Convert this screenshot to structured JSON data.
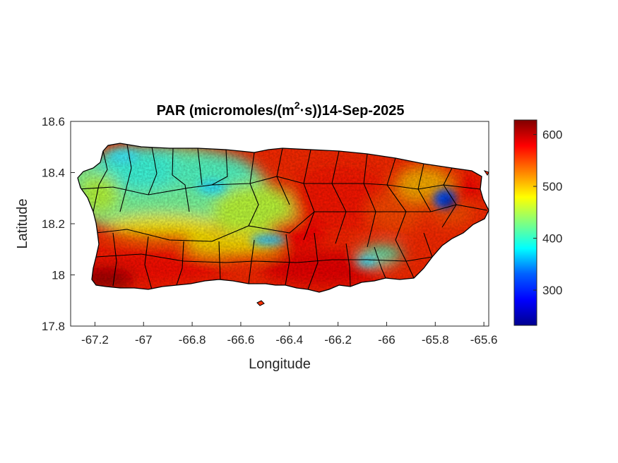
{
  "title": {
    "prefix": "PAR (micromoles/(m",
    "superscript": "2",
    "suffix": "·s))14-Sep-2025"
  },
  "axes": {
    "xlabel": "Longitude",
    "ylabel": "Latitude",
    "xlim": [
      -67.3,
      -65.58
    ],
    "ylim": [
      17.8,
      18.6
    ],
    "xticks": [
      -67.2,
      -67,
      -66.8,
      -66.6,
      -66.4,
      -66.2,
      -66,
      -65.8,
      -65.6
    ],
    "yticks": [
      17.8,
      18,
      18.2,
      18.4,
      18.6
    ],
    "xtick_labels": [
      "-67.2",
      "-67",
      "-66.8",
      "-66.6",
      "-66.4",
      "-66.2",
      "-66",
      "-65.8",
      "-65.6"
    ],
    "ytick_labels": [
      "17.8",
      "18",
      "18.2",
      "18.4",
      "18.6"
    ]
  },
  "colorbar": {
    "colormap": "jet",
    "range": [
      232,
      628
    ],
    "ticks": [
      300,
      400,
      500,
      600
    ],
    "tick_labels": [
      "300",
      "400",
      "500",
      "600"
    ]
  },
  "chart_data": {
    "type": "heatmap",
    "variable": "PAR",
    "units": "micromoles/(m2·s)",
    "date": "14-Sep-2025",
    "region": "Puerto Rico",
    "value_range": [
      232,
      628
    ],
    "regions": [
      {
        "area": "northwest and north-central interior",
        "approx_value": 410
      },
      {
        "area": "west coast",
        "approx_value": 450
      },
      {
        "area": "south coast",
        "approx_value": 610
      },
      {
        "area": "southwest corner",
        "approx_value": 625
      },
      {
        "area": "central and eastern interior",
        "approx_value": 580
      },
      {
        "area": "east coast near -65.75, 18.28",
        "approx_value": 300
      }
    ]
  },
  "colors": {
    "jet": [
      "#00008f",
      "#0000ff",
      "#0080ff",
      "#00ffff",
      "#80ff80",
      "#ffff00",
      "#ff8000",
      "#ff0000",
      "#800000"
    ],
    "border": "#000000"
  }
}
